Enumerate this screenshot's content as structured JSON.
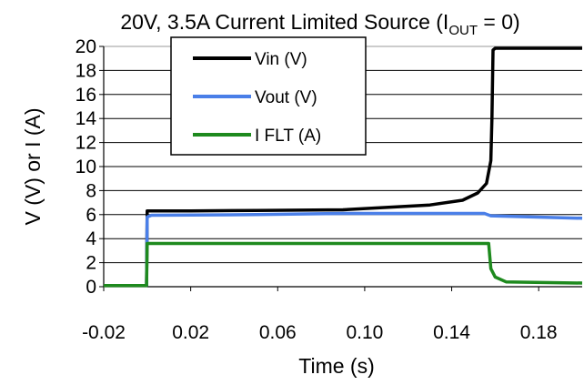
{
  "chart_data": {
    "type": "line",
    "title": {
      "main": "20V, 3.5A Current Limited Source (I",
      "sub": "OUT",
      "end": " = 0)"
    },
    "xlabel": "Time (s)",
    "ylabel": "V (V) or I (A)",
    "xlim": [
      -0.02,
      0.2
    ],
    "ylim": [
      0,
      20
    ],
    "x_ticks": [
      -0.02,
      0.02,
      0.06,
      0.1,
      0.14,
      0.18
    ],
    "x_tick_labels": [
      "-0.02",
      "0.02",
      "0.06",
      "0.10",
      "0.14",
      "0.18"
    ],
    "y_ticks": [
      0,
      2,
      4,
      6,
      8,
      10,
      12,
      14,
      16,
      18,
      20
    ],
    "y_tick_labels": [
      "0",
      "2",
      "4",
      "6",
      "8",
      "10",
      "12",
      "14",
      "16",
      "18",
      "20"
    ],
    "grid": "horizontal",
    "legend": "top-left",
    "series": [
      {
        "name": "Vin (V)",
        "color": "#000000",
        "points": [
          [
            -0.02,
            0.1
          ],
          [
            -0.0003,
            0.1
          ],
          [
            0.0,
            6.3
          ],
          [
            0.02,
            6.3
          ],
          [
            0.05,
            6.35
          ],
          [
            0.09,
            6.4
          ],
          [
            0.11,
            6.6
          ],
          [
            0.13,
            6.8
          ],
          [
            0.145,
            7.2
          ],
          [
            0.152,
            7.8
          ],
          [
            0.156,
            8.6
          ],
          [
            0.158,
            10.5
          ],
          [
            0.1585,
            14
          ],
          [
            0.159,
            19.7
          ],
          [
            0.16,
            19.85
          ],
          [
            0.2,
            19.85
          ]
        ]
      },
      {
        "name": "Vout (V)",
        "color": "#4a7fe8",
        "points": [
          [
            -0.02,
            0.1
          ],
          [
            -0.0003,
            0.1
          ],
          [
            0.0,
            5.8
          ],
          [
            0.002,
            5.95
          ],
          [
            0.05,
            6.0
          ],
          [
            0.09,
            6.1
          ],
          [
            0.155,
            6.1
          ],
          [
            0.158,
            5.9
          ],
          [
            0.2,
            5.7
          ]
        ]
      },
      {
        "name": "I FLT (A)",
        "color": "#1e8a1e",
        "points": [
          [
            -0.02,
            0.1
          ],
          [
            -0.0003,
            0.1
          ],
          [
            0.0,
            3.6
          ],
          [
            0.157,
            3.6
          ],
          [
            0.158,
            1.5
          ],
          [
            0.16,
            0.8
          ],
          [
            0.165,
            0.4
          ],
          [
            0.2,
            0.3
          ]
        ]
      }
    ]
  }
}
